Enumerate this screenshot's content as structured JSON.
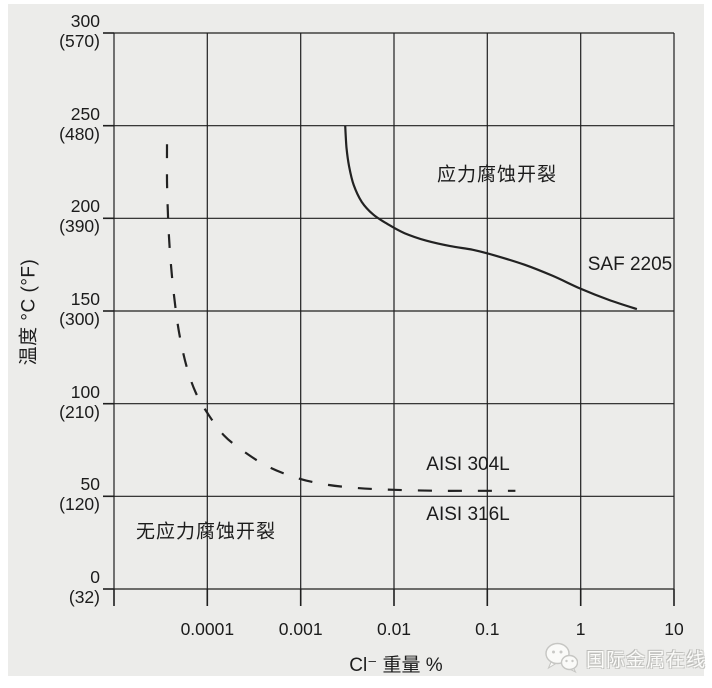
{
  "chart_data": {
    "type": "line",
    "x_axis": {
      "title": "Cl⁻ 重量 %",
      "scale": "log",
      "lim": [
        1e-05,
        10
      ],
      "ticks": [
        {
          "label": "0.0001",
          "value": 0.0001
        },
        {
          "label": "0.001",
          "value": 0.001
        },
        {
          "label": "0.01",
          "value": 0.01
        },
        {
          "label": "0.1",
          "value": 0.1
        },
        {
          "label": "1",
          "value": 1
        },
        {
          "label": "10",
          "value": 10
        }
      ]
    },
    "y_axis": {
      "title": "温度 °C (°F)",
      "lim": [
        0,
        300
      ],
      "ticks": [
        {
          "celsius": "300",
          "fahrenheit": "(570)",
          "value": 300
        },
        {
          "celsius": "250",
          "fahrenheit": "(480)",
          "value": 250
        },
        {
          "celsius": "200",
          "fahrenheit": "(390)",
          "value": 200
        },
        {
          "celsius": "150",
          "fahrenheit": "(300)",
          "value": 150
        },
        {
          "celsius": "100",
          "fahrenheit": "(210)",
          "value": 100
        },
        {
          "celsius": "50",
          "fahrenheit": "(120)",
          "value": 50
        },
        {
          "celsius": "0",
          "fahrenheit": "(32)",
          "value": 0
        }
      ]
    },
    "regions": {
      "scc": "应力腐蚀开裂",
      "no_scc": "无应力腐蚀开裂"
    },
    "series": [
      {
        "names": [
          "SAF 2205"
        ],
        "line_style": "solid",
        "points": [
          [
            0.003,
            250
          ],
          [
            0.0031,
            238
          ],
          [
            0.0033,
            228
          ],
          [
            0.0037,
            218
          ],
          [
            0.0045,
            209
          ],
          [
            0.006,
            202
          ],
          [
            0.0085,
            197
          ],
          [
            0.013,
            192
          ],
          [
            0.022,
            188
          ],
          [
            0.04,
            185
          ],
          [
            0.07,
            183
          ],
          [
            0.12,
            180
          ],
          [
            0.25,
            175
          ],
          [
            0.5,
            169
          ],
          [
            1,
            162
          ],
          [
            2,
            156
          ],
          [
            4,
            151
          ]
        ]
      },
      {
        "names": [
          "AISI 304L",
          "AISI 316L"
        ],
        "line_style": "dashed",
        "points": [
          [
            3.7e-05,
            240
          ],
          [
            3.7e-05,
            220
          ],
          [
            3.8e-05,
            200
          ],
          [
            4e-05,
            180
          ],
          [
            4.4e-05,
            158
          ],
          [
            5e-05,
            138
          ],
          [
            6e-05,
            120
          ],
          [
            7.5e-05,
            106
          ],
          [
            0.0001,
            95
          ],
          [
            0.00015,
            83
          ],
          [
            0.00025,
            74
          ],
          [
            0.00045,
            66
          ],
          [
            0.0009,
            60
          ],
          [
            0.0018,
            56.5
          ],
          [
            0.004,
            54.5
          ],
          [
            0.01,
            53.5
          ],
          [
            0.03,
            53
          ],
          [
            0.08,
            53
          ],
          [
            0.2,
            53
          ]
        ]
      }
    ],
    "colors": {
      "background": "#ececea",
      "line": "#222222",
      "grid": "#1f1f1f",
      "text": "#1c1c1c"
    }
  },
  "watermark": {
    "icon": "wechat-icon",
    "text": "国际金属在线"
  }
}
